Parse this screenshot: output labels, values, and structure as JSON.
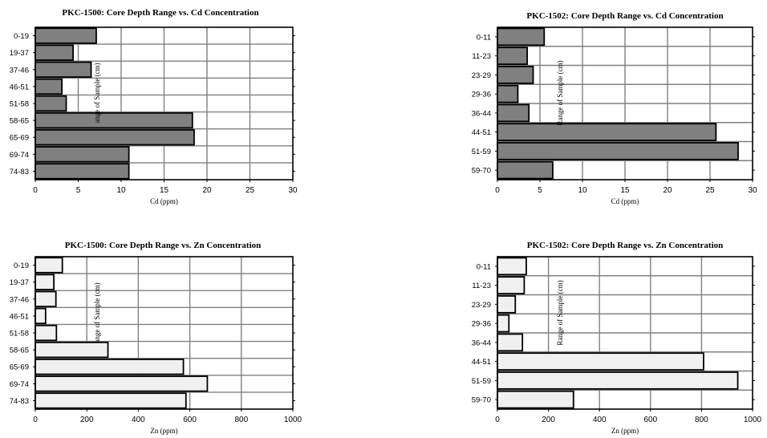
{
  "colors": {
    "cd_bar": "#808080",
    "zn_bar": "#f0f0f0",
    "grid": "#808080",
    "frame": "#000000"
  },
  "chart_data": [
    {
      "type": "bar",
      "orientation": "horizontal",
      "title": "PKC-1500:  Core  Depth  Range  vs.  Cd  Concentration",
      "xlabel": "Cd (ppm)",
      "ylabel": "ange of Sample (cm)",
      "categories": [
        "0-19",
        "19-37",
        "37-46",
        "46-51",
        "51-58",
        "58-65",
        "65-69",
        "69-74",
        "74-83"
      ],
      "values": [
        7.1,
        4.4,
        6.5,
        3.1,
        3.6,
        18.3,
        18.5,
        10.9,
        10.9
      ],
      "xlim": [
        0,
        30
      ],
      "xticks": [
        "0",
        "5",
        "10",
        "15",
        "20",
        "25",
        "30"
      ],
      "grid": true,
      "legend": "none"
    },
    {
      "type": "bar",
      "orientation": "horizontal",
      "title": "PKC-1502:  Core  Depth  Range  vs.  Cd  Concentration",
      "xlabel": "Cd (ppm)",
      "ylabel": "Range of Sample (cm)",
      "categories": [
        "0-11",
        "11-23",
        "23-29",
        "29-36",
        "36-44",
        "44-51",
        "51-59",
        "59-70"
      ],
      "values": [
        5.5,
        3.5,
        4.2,
        2.4,
        3.7,
        25.7,
        28.3,
        6.5
      ],
      "xlim": [
        0,
        30
      ],
      "xticks": [
        "0",
        "5",
        "10",
        "15",
        "20",
        "25",
        "30"
      ],
      "grid": true,
      "legend": "none"
    },
    {
      "type": "bar",
      "orientation": "horizontal",
      "title": "PKC-1500:  Core  Depth  Range  vs.  Zn  Concentration",
      "xlabel": "Zn (ppm)",
      "ylabel": "ange of Sample (cm)",
      "categories": [
        "0-19",
        "19-37",
        "37-46",
        "46-51",
        "51-58",
        "58-65",
        "65-69",
        "69-74",
        "74-83"
      ],
      "values": [
        105,
        72,
        80,
        40,
        82,
        282,
        575,
        668,
        585
      ],
      "xlim": [
        0,
        1000
      ],
      "xticks": [
        "0",
        "200",
        "400",
        "600",
        "800",
        "1000"
      ],
      "grid": true,
      "legend": "none"
    },
    {
      "type": "bar",
      "orientation": "horizontal",
      "title": "PKC-1502:  Core  Depth  Range  vs.  Zn  Concentration",
      "xlabel": "Zn (ppm)",
      "ylabel": "Range of Sample (cm)",
      "categories": [
        "0-11",
        "11-23",
        "23-29",
        "29-36",
        "36-44",
        "44-51",
        "51-59",
        "59-70"
      ],
      "values": [
        113,
        105,
        70,
        45,
        98,
        808,
        942,
        298
      ],
      "xlim": [
        0,
        1000
      ],
      "xticks": [
        "0",
        "200",
        "400",
        "600",
        "800",
        "1000"
      ],
      "grid": true,
      "legend": "none"
    }
  ]
}
